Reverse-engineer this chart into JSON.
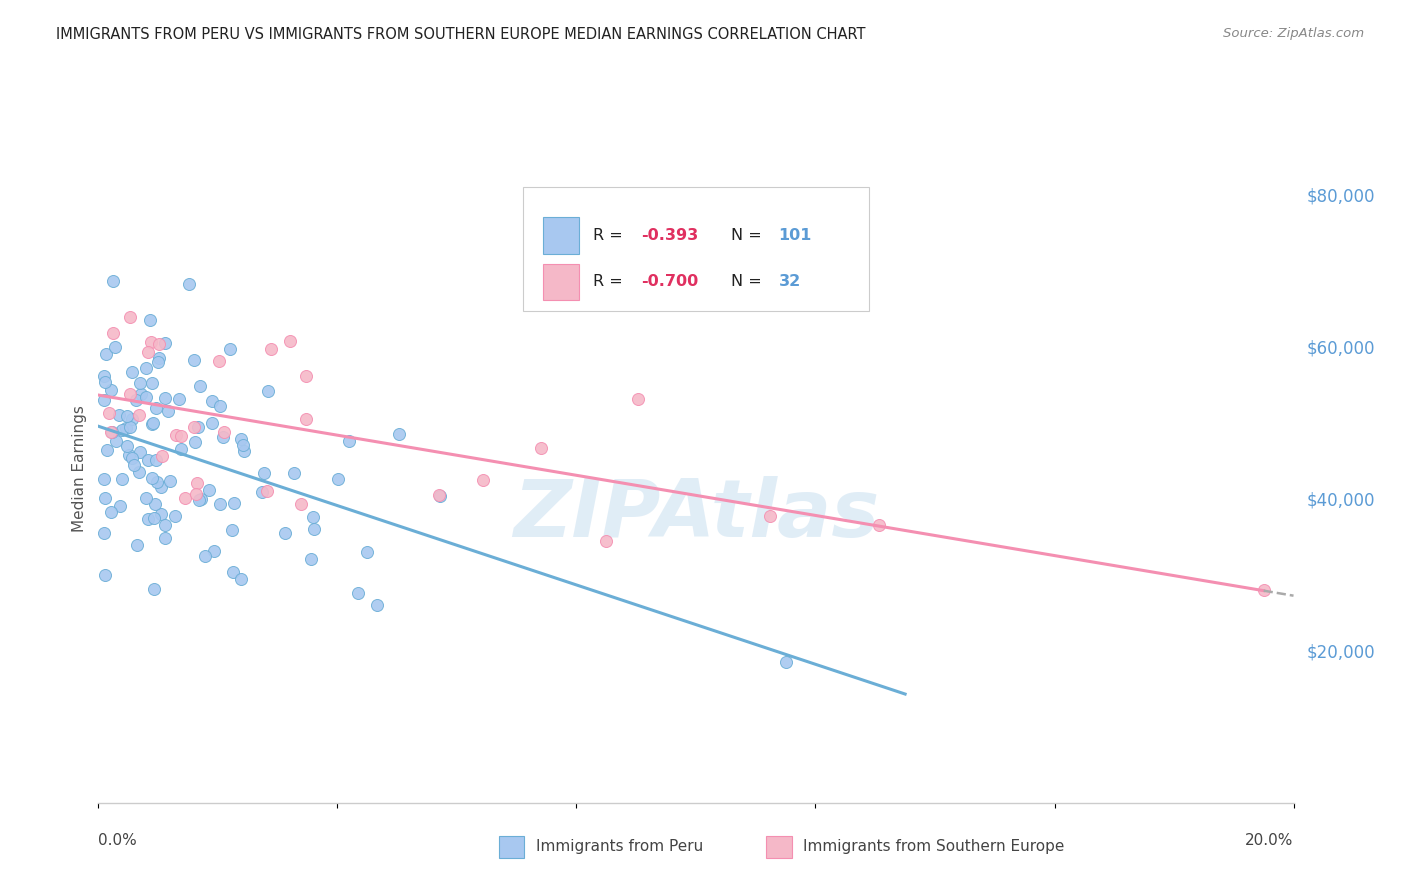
{
  "title": "IMMIGRANTS FROM PERU VS IMMIGRANTS FROM SOUTHERN EUROPE MEDIAN EARNINGS CORRELATION CHART",
  "source": "Source: ZipAtlas.com",
  "ylabel": "Median Earnings",
  "right_yticks": [
    "$80,000",
    "$60,000",
    "$40,000",
    "$20,000"
  ],
  "right_ytick_vals": [
    80000,
    60000,
    40000,
    20000
  ],
  "legend_r1": "-0.393",
  "legend_n1": "101",
  "legend_r2": "-0.700",
  "legend_n2": "32",
  "peru_line_color": "#6baed6",
  "south_europe_line_color": "#f48fb1",
  "peru_scatter_face": "#a8c8f0",
  "peru_scatter_edge": "#6baed6",
  "se_scatter_face": "#f5b8c8",
  "se_scatter_edge": "#f48fb1",
  "xlim": [
    0.0,
    0.2
  ],
  "ylim": [
    0,
    88000
  ],
  "watermark_text": "ZIPAtlas",
  "watermark_color": "#c8dff0",
  "grid_color": "#dddddd",
  "title_color": "#222222",
  "right_axis_color": "#5b9bd5",
  "source_color": "#888888",
  "bottom_label_peru": "Immigrants from Peru",
  "bottom_label_se": "Immigrants from Southern Europe",
  "xtick_left": "0.0%",
  "xtick_right": "20.0%"
}
